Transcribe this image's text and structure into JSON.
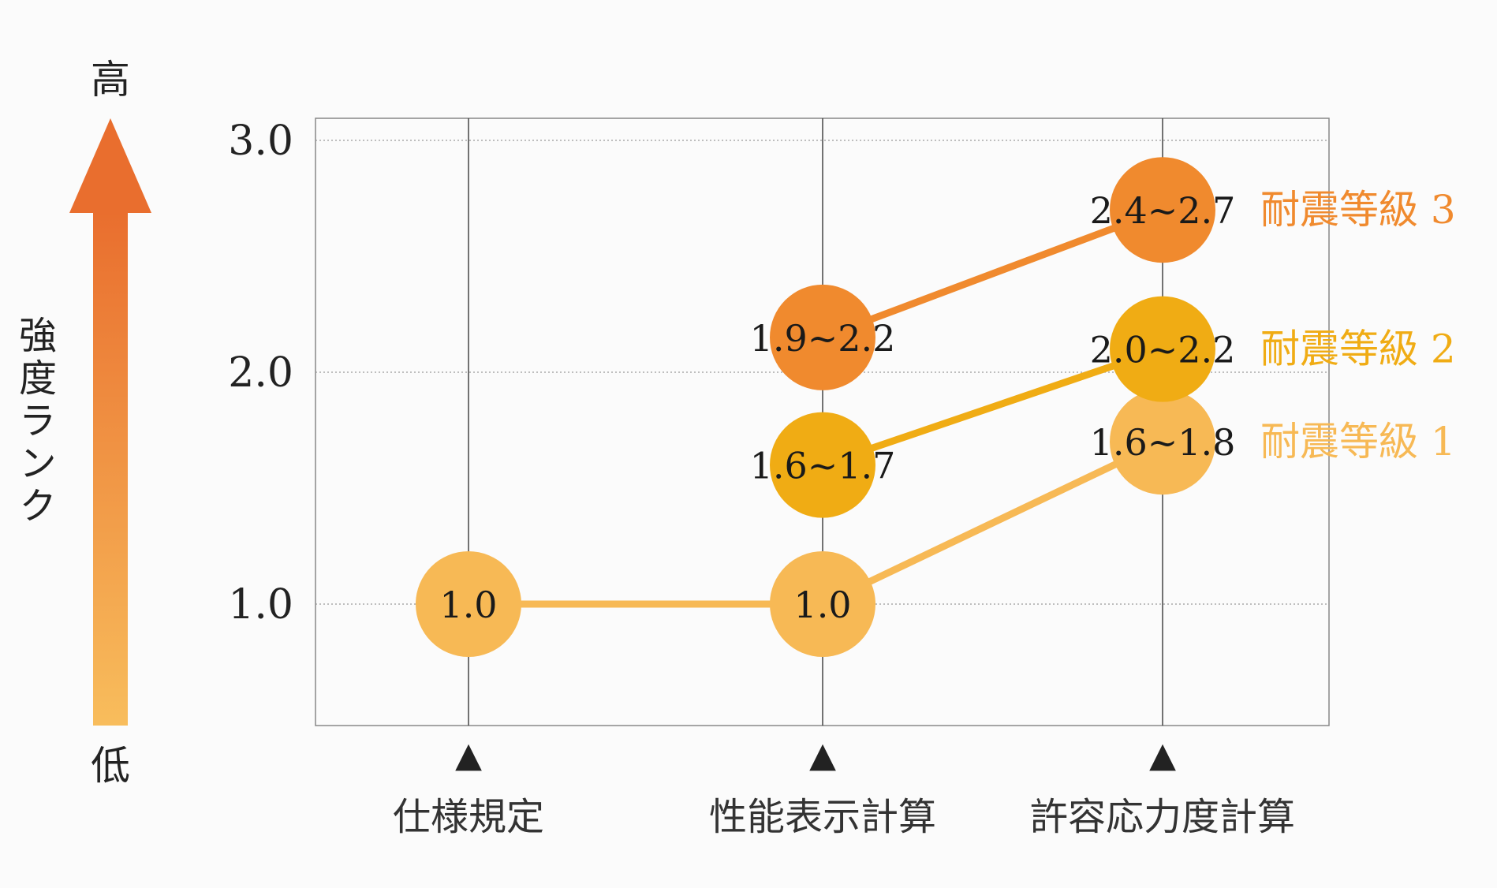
{
  "chart_data": {
    "type": "scatter",
    "categories": [
      "仕様規定",
      "性能表示計算",
      "許容応力度計算"
    ],
    "ylabel": "強度ランク",
    "y_high_label": "高",
    "y_low_label": "低",
    "y_ticks": [
      "1.0",
      "2.0",
      "3.0"
    ],
    "y_tick_values": [
      1.0,
      2.0,
      3.0
    ],
    "ylim": [
      0.48,
      3.15
    ],
    "grid": true,
    "marker_glyph": "▲",
    "series": [
      {
        "name": "耐震等級 1",
        "color": "#f7b955",
        "points": [
          {
            "category": "仕様規定",
            "y": 1.0,
            "label": "1.0"
          },
          {
            "category": "性能表示計算",
            "y": 1.0,
            "label": "1.0"
          },
          {
            "category": "許容応力度計算",
            "y": 1.7,
            "label": "1.6~1.8"
          }
        ]
      },
      {
        "name": "耐震等級 2",
        "color": "#f0ac14",
        "points": [
          {
            "category": "性能表示計算",
            "y": 1.6,
            "label": "1.6~1.7"
          },
          {
            "category": "許容応力度計算",
            "y": 2.1,
            "label": "2.0~2.2"
          }
        ]
      },
      {
        "name": "耐震等級 3",
        "color": "#f08a2e",
        "points": [
          {
            "category": "性能表示計算",
            "y": 2.15,
            "label": "1.9~2.2"
          },
          {
            "category": "許容応力度計算",
            "y": 2.7,
            "label": "2.4~2.7"
          }
        ]
      }
    ]
  }
}
